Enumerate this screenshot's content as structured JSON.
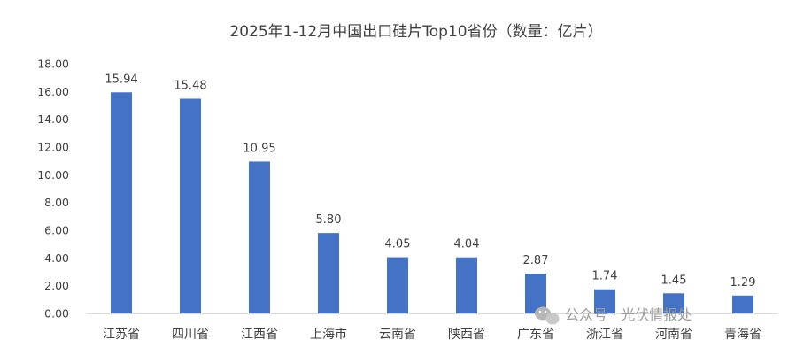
{
  "chart_data": {
    "type": "bar",
    "title": "2025年1-12月中国出口硅片Top10省份（数量：亿片）",
    "categories": [
      "江苏省",
      "四川省",
      "江西省",
      "上海市",
      "云南省",
      "陕西省",
      "广东省",
      "浙江省",
      "河南省",
      "青海省"
    ],
    "values": [
      15.94,
      15.48,
      10.95,
      5.8,
      4.05,
      4.04,
      2.87,
      1.74,
      1.45,
      1.29
    ],
    "data_labels": [
      "15.94",
      "15.48",
      "10.95",
      "5.80",
      "4.05",
      "4.04",
      "2.87",
      "1.74",
      "1.45",
      "1.29"
    ],
    "y_ticks": [
      "0.00",
      "2.00",
      "4.00",
      "6.00",
      "8.00",
      "10.00",
      "12.00",
      "14.00",
      "16.00",
      "18.00"
    ],
    "ylim": [
      0,
      18
    ],
    "grid": false,
    "legend": "none",
    "bar_color": "#4472C4",
    "watermark": "公众号 · 光伏情报处"
  }
}
